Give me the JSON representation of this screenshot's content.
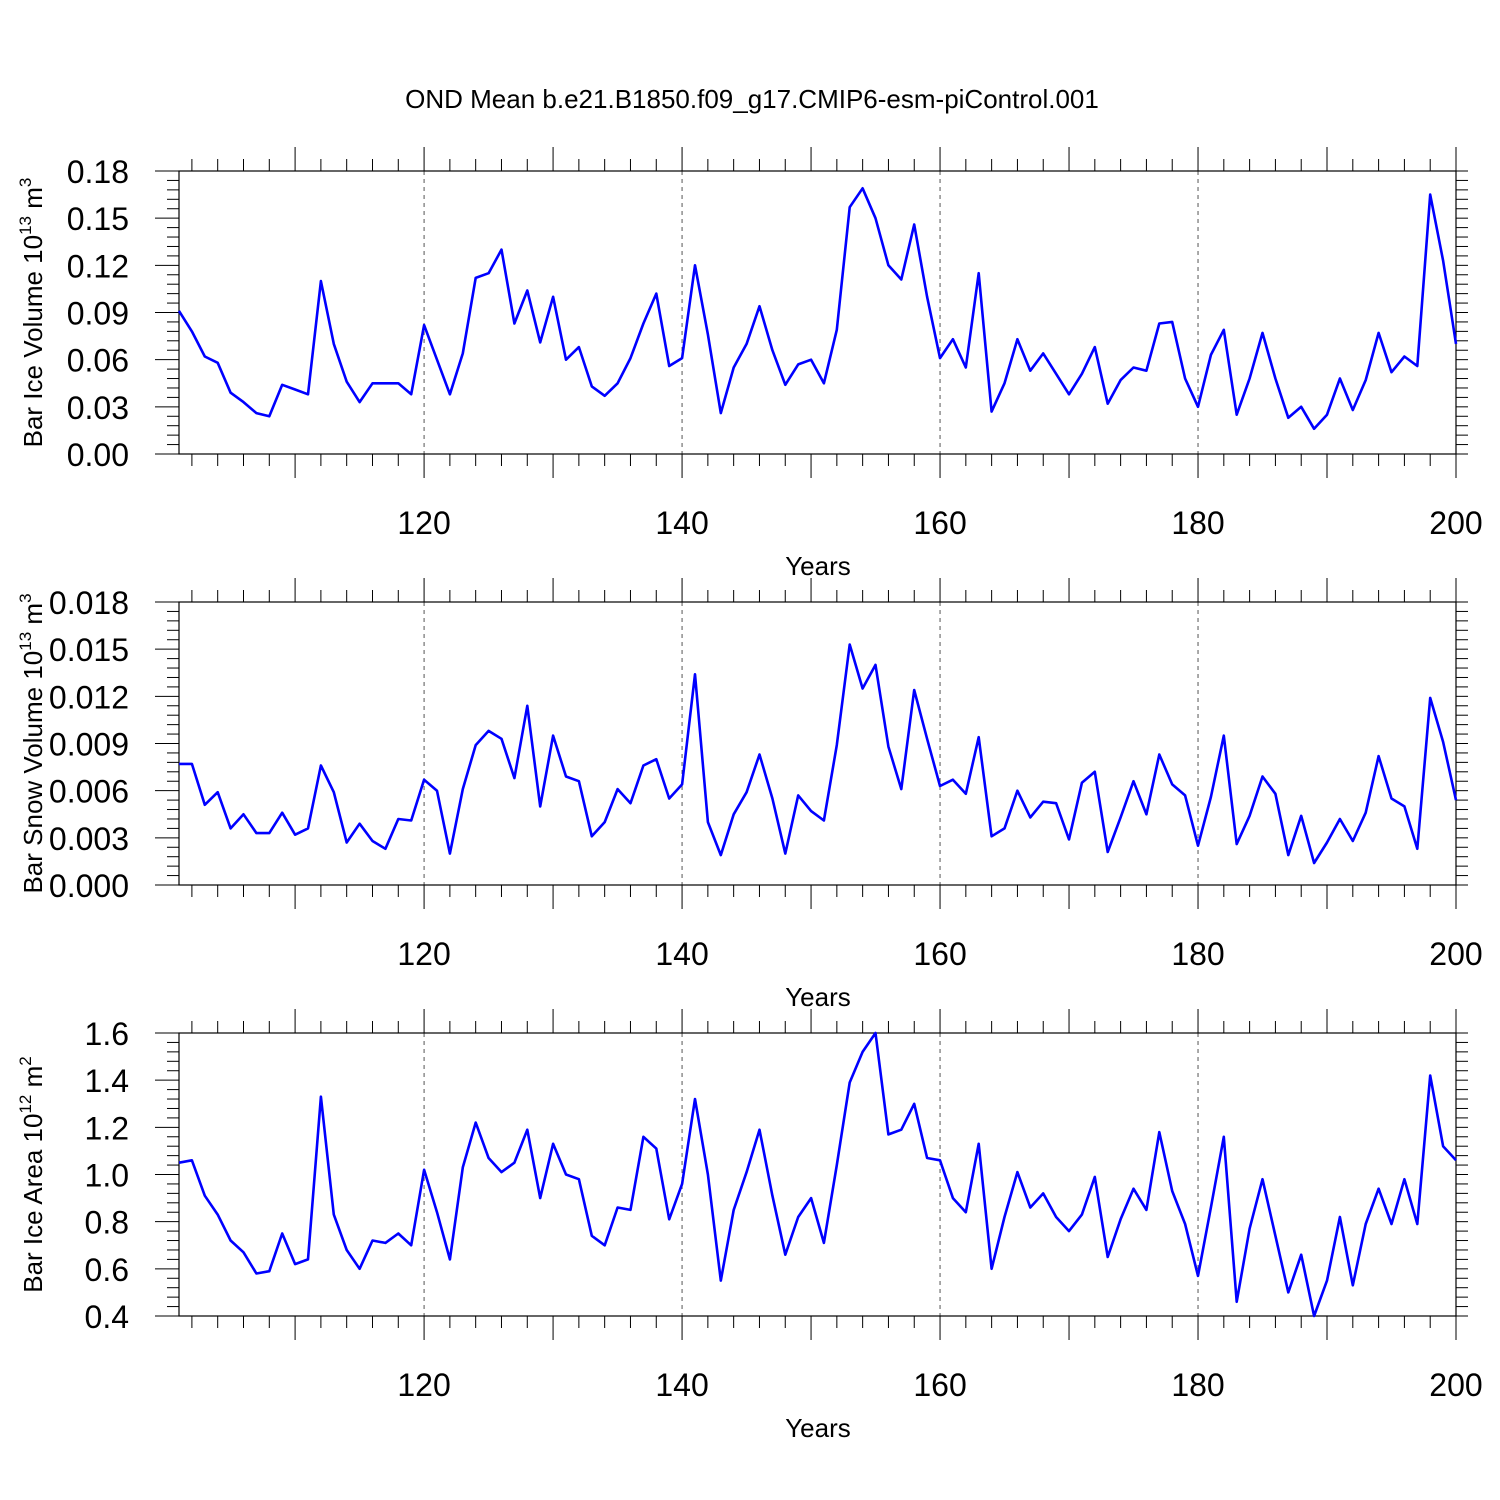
{
  "title": "OND Mean b.e21.B1850.f09_g17.CMIP6-esm-piControl.001",
  "line_color": "#0000ff",
  "chart_data": [
    {
      "type": "line",
      "ylabel": "Bar Ice Volume 10",
      "ylabel_exp": "13",
      "ylabel_unit": " m",
      "ylabel_unit_exp": "3",
      "xlabel": "Years",
      "xlim": [
        101,
        200
      ],
      "ylim": [
        0,
        0.18
      ],
      "yticks": [
        "0.00",
        "0.03",
        "0.06",
        "0.09",
        "0.12",
        "0.15",
        "0.18"
      ],
      "xticks": [
        "120",
        "140",
        "160",
        "180",
        "200"
      ],
      "series": [
        {
          "name": "Bar Ice Volume",
          "x_start": 101,
          "values": [
            0.091,
            0.078,
            0.062,
            0.058,
            0.039,
            0.033,
            0.026,
            0.024,
            0.044,
            0.041,
            0.038,
            0.11,
            0.07,
            0.046,
            0.033,
            0.045,
            0.045,
            0.045,
            0.038,
            0.082,
            0.06,
            0.038,
            0.064,
            0.112,
            0.115,
            0.13,
            0.083,
            0.104,
            0.071,
            0.1,
            0.06,
            0.068,
            0.043,
            0.037,
            0.045,
            0.061,
            0.083,
            0.102,
            0.056,
            0.061,
            0.12,
            0.076,
            0.026,
            0.055,
            0.07,
            0.094,
            0.066,
            0.044,
            0.057,
            0.06,
            0.045,
            0.079,
            0.157,
            0.169,
            0.15,
            0.12,
            0.111,
            0.146,
            0.1,
            0.061,
            0.073,
            0.055,
            0.115,
            0.027,
            0.045,
            0.073,
            0.053,
            0.064,
            0.051,
            0.038,
            0.051,
            0.068,
            0.032,
            0.047,
            0.055,
            0.053,
            0.083,
            0.084,
            0.048,
            0.03,
            0.063,
            0.079,
            0.025,
            0.048,
            0.077,
            0.048,
            0.023,
            0.03,
            0.016,
            0.025,
            0.048,
            0.028,
            0.047,
            0.077,
            0.052,
            0.062,
            0.056,
            0.165,
            0.123,
            0.07
          ]
        }
      ]
    },
    {
      "type": "line",
      "ylabel": "Bar Snow Volume 10",
      "ylabel_exp": "13",
      "ylabel_unit": " m",
      "ylabel_unit_exp": "3",
      "xlabel": "Years",
      "xlim": [
        101,
        200
      ],
      "ylim": [
        0,
        0.018
      ],
      "yticks": [
        "0.000",
        "0.003",
        "0.006",
        "0.009",
        "0.012",
        "0.015",
        "0.018"
      ],
      "xticks": [
        "120",
        "140",
        "160",
        "180",
        "200"
      ],
      "series": [
        {
          "name": "Bar Snow Volume",
          "x_start": 101,
          "values": [
            0.0077,
            0.0077,
            0.0051,
            0.0059,
            0.0036,
            0.0045,
            0.0033,
            0.0033,
            0.0046,
            0.0032,
            0.0036,
            0.0076,
            0.0059,
            0.0027,
            0.0039,
            0.0028,
            0.0023,
            0.0042,
            0.0041,
            0.0067,
            0.006,
            0.002,
            0.0061,
            0.0089,
            0.0098,
            0.0093,
            0.0068,
            0.0114,
            0.005,
            0.0095,
            0.0069,
            0.0066,
            0.0031,
            0.004,
            0.0061,
            0.0052,
            0.0076,
            0.008,
            0.0055,
            0.0064,
            0.0134,
            0.004,
            0.0019,
            0.0045,
            0.0059,
            0.0083,
            0.0055,
            0.002,
            0.0057,
            0.0047,
            0.0041,
            0.0089,
            0.0153,
            0.0125,
            0.014,
            0.0088,
            0.0061,
            0.0124,
            0.0093,
            0.0063,
            0.0067,
            0.0058,
            0.0094,
            0.0031,
            0.0036,
            0.006,
            0.0043,
            0.0053,
            0.0052,
            0.0029,
            0.0065,
            0.0072,
            0.0021,
            0.0043,
            0.0066,
            0.0045,
            0.0083,
            0.0064,
            0.0057,
            0.0025,
            0.0056,
            0.0095,
            0.0026,
            0.0044,
            0.0069,
            0.0058,
            0.0019,
            0.0044,
            0.0014,
            0.0027,
            0.0042,
            0.0028,
            0.0046,
            0.0082,
            0.0055,
            0.005,
            0.0023,
            0.0119,
            0.0091,
            0.0054
          ]
        }
      ]
    },
    {
      "type": "line",
      "ylabel": "Bar Ice Area 10",
      "ylabel_exp": "12",
      "ylabel_unit": " m",
      "ylabel_unit_exp": "2",
      "xlabel": "Years",
      "xlim": [
        101,
        200
      ],
      "ylim": [
        0.4,
        1.6
      ],
      "yticks": [
        "0.4",
        "0.6",
        "0.8",
        "1.0",
        "1.2",
        "1.4",
        "1.6"
      ],
      "xticks": [
        "120",
        "140",
        "160",
        "180",
        "200"
      ],
      "series": [
        {
          "name": "Bar Ice Area",
          "x_start": 101,
          "values": [
            1.05,
            1.06,
            0.91,
            0.83,
            0.72,
            0.67,
            0.58,
            0.59,
            0.75,
            0.62,
            0.64,
            1.33,
            0.83,
            0.68,
            0.6,
            0.72,
            0.71,
            0.75,
            0.7,
            1.02,
            0.84,
            0.64,
            1.03,
            1.22,
            1.07,
            1.01,
            1.05,
            1.19,
            0.9,
            1.13,
            1.0,
            0.98,
            0.74,
            0.7,
            0.86,
            0.85,
            1.16,
            1.11,
            0.81,
            0.96,
            1.32,
            1.0,
            0.55,
            0.85,
            1.01,
            1.19,
            0.91,
            0.66,
            0.82,
            0.9,
            0.71,
            1.04,
            1.39,
            1.52,
            1.6,
            1.17,
            1.19,
            1.3,
            1.07,
            1.06,
            0.9,
            0.84,
            1.13,
            0.6,
            0.82,
            1.01,
            0.86,
            0.92,
            0.82,
            0.76,
            0.83,
            0.99,
            0.65,
            0.81,
            0.94,
            0.85,
            1.18,
            0.93,
            0.79,
            0.57,
            0.86,
            1.16,
            0.46,
            0.77,
            0.98,
            0.74,
            0.5,
            0.66,
            0.4,
            0.55,
            0.82,
            0.53,
            0.79,
            0.94,
            0.79,
            0.98,
            0.79,
            1.42,
            1.12,
            1.06
          ]
        }
      ]
    }
  ]
}
